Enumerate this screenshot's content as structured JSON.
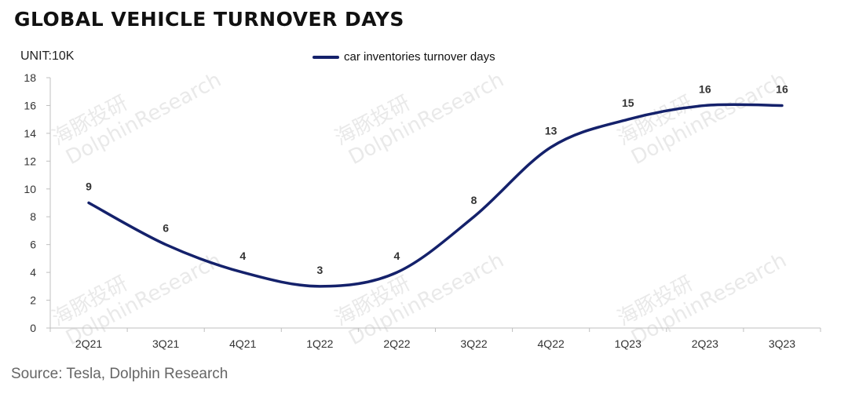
{
  "header": {
    "title": "GLOBAL VEHICLE TURNOVER DAYS",
    "unit": "UNIT:10K",
    "source": "Source: Tesla, Dolphin Research"
  },
  "watermark": {
    "text": "DolphinResearch",
    "cn_text": "海豚投研"
  },
  "legend": {
    "label": "car inventories turnover days"
  },
  "colors": {
    "series": "#14216b",
    "axis": "#bfbfbf",
    "text": "#333333"
  },
  "chart_data": {
    "type": "line",
    "smooth": true,
    "categories": [
      "2Q21",
      "3Q21",
      "4Q21",
      "1Q22",
      "2Q22",
      "3Q22",
      "4Q22",
      "1Q23",
      "2Q23",
      "3Q23"
    ],
    "series": [
      {
        "name": "car inventories turnover days",
        "values": [
          9,
          6,
          4,
          3,
          4,
          8,
          13,
          15,
          16,
          16
        ]
      }
    ],
    "y_ticks": [
      0,
      2,
      4,
      6,
      8,
      10,
      12,
      14,
      16,
      18
    ],
    "ylim": [
      0,
      18
    ],
    "grid": false,
    "legend_position": "top-center",
    "data_labels": true
  }
}
